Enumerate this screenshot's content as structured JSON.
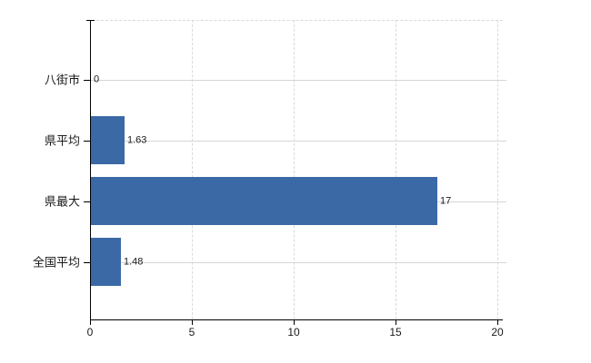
{
  "chart_data": {
    "type": "bar",
    "orientation": "horizontal",
    "title": "",
    "categories": [
      "八街市",
      "県平均",
      "県最大",
      "全国平均"
    ],
    "values": [
      0,
      1.63,
      17,
      1.48
    ],
    "value_labels": [
      "0",
      "1.63",
      "17",
      "1.48"
    ],
    "xlim": [
      0,
      20
    ],
    "x_ticks": [
      0,
      5,
      10,
      15,
      20
    ],
    "x_tick_labels": [
      "0",
      "5",
      "10",
      "15",
      "20"
    ],
    "grid": true,
    "legend": false,
    "colors": {
      "bar": "#3b69a6",
      "grid_solid": "#d5d5d5",
      "grid_dashed": "#d9d9d9",
      "axis": "#000000",
      "text": "#1a1a1a",
      "background": "#ffffff"
    }
  }
}
